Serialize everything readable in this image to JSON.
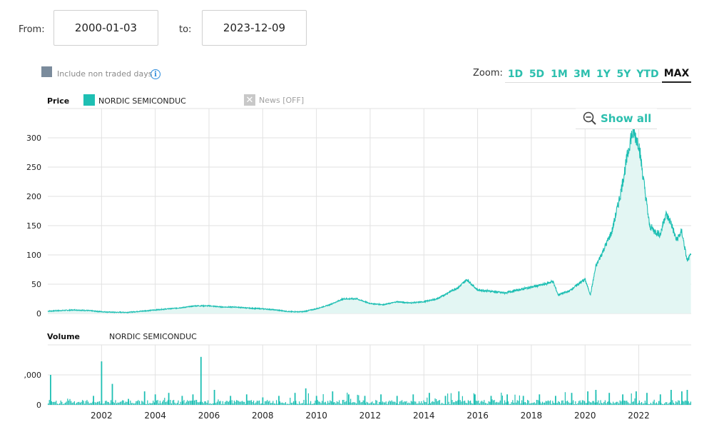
{
  "date_range": {
    "from_label": "From:",
    "from_value": "2000-01-03",
    "to_label": "to:",
    "to_value": "2023-12-09"
  },
  "options": {
    "include_non_traded_days": "Include non traded days",
    "info_icon": "info-icon"
  },
  "zoom": {
    "label": "Zoom:",
    "buttons": [
      "1D",
      "5D",
      "1M",
      "3M",
      "1Y",
      "5Y",
      "YTD",
      "MAX"
    ],
    "active": "MAX"
  },
  "legend": {
    "price_title": "Price",
    "series_name": "NORDIC SEMICONDUC",
    "news_label": "News [OFF]",
    "volume_title": "Volume",
    "volume_series_name": "NORDIC SEMICONDUC"
  },
  "show_all": "Show all",
  "colors": {
    "series": "#1ebfb3",
    "fill": "#e3f6f3",
    "accent": "#2cbfae",
    "grid": "#e2e2e2"
  },
  "chart_data": [
    {
      "type": "line",
      "name": "price",
      "series": [
        {
          "name": "NORDIC SEMICONDUC",
          "x": [
            2000.0,
            2000.5,
            2001.0,
            2001.5,
            2002.0,
            2002.5,
            2003.0,
            2003.5,
            2004.0,
            2004.5,
            2005.0,
            2005.5,
            2006.0,
            2006.5,
            2007.0,
            2007.5,
            2008.0,
            2008.5,
            2009.0,
            2009.5,
            2010.0,
            2010.5,
            2011.0,
            2011.5,
            2012.0,
            2012.5,
            2013.0,
            2013.5,
            2014.0,
            2014.5,
            2015.0,
            2015.3,
            2015.6,
            2016.0,
            2016.5,
            2017.0,
            2017.5,
            2018.0,
            2018.5,
            2018.8,
            2019.0,
            2019.4,
            2019.8,
            2020.0,
            2020.2,
            2020.4,
            2020.7,
            2021.0,
            2021.3,
            2021.5,
            2021.7,
            2021.8,
            2022.0,
            2022.2,
            2022.4,
            2022.6,
            2022.8,
            2023.0,
            2023.2,
            2023.4,
            2023.6,
            2023.8,
            2023.94
          ],
          "values": [
            4,
            5,
            6,
            5,
            3,
            2,
            2,
            4,
            6,
            8,
            10,
            13,
            13,
            11,
            11,
            9,
            8,
            6,
            3,
            3,
            8,
            15,
            25,
            25,
            17,
            15,
            20,
            18,
            20,
            25,
            38,
            45,
            58,
            40,
            38,
            35,
            40,
            45,
            50,
            55,
            32,
            38,
            52,
            58,
            32,
            80,
            110,
            140,
            200,
            250,
            300,
            310,
            290,
            220,
            150,
            140,
            135,
            170,
            155,
            125,
            140,
            90,
            100
          ]
        }
      ],
      "xlim": [
        2000.0,
        2023.95
      ],
      "ylim": [
        0,
        350
      ],
      "y_ticks": [
        0,
        50,
        100,
        150,
        200,
        250,
        300
      ],
      "x_ticks": [
        2002,
        2004,
        2006,
        2008,
        2010,
        2012,
        2014,
        2016,
        2018,
        2020,
        2022
      ],
      "grid": true
    },
    {
      "type": "bar",
      "name": "volume",
      "y_tick_labels": [
        "0",
        ",000"
      ],
      "series": [
        {
          "name": "NORDIC SEMICONDUC",
          "x": [
            2000.1,
            2001.7,
            2002.0,
            2002.4,
            2003.0,
            2003.6,
            2004.0,
            2004.5,
            2005.0,
            2005.4,
            2005.7,
            2006.2,
            2006.8,
            2007.4,
            2008.0,
            2008.6,
            2009.2,
            2009.6,
            2010.0,
            2010.6,
            2011.2,
            2011.8,
            2012.4,
            2013.0,
            2013.6,
            2014.2,
            2014.8,
            2015.3,
            2015.9,
            2016.5,
            2017.1,
            2017.7,
            2018.3,
            2018.9,
            2019.5,
            2020.1,
            2020.4,
            2020.9,
            2021.4,
            2021.9,
            2022.3,
            2022.8,
            2023.2,
            2023.6,
            2023.8
          ],
          "values": [
            1.0,
            0.3,
            1.45,
            0.7,
            0.2,
            0.45,
            0.35,
            0.4,
            0.3,
            0.35,
            1.6,
            0.5,
            0.3,
            0.35,
            0.25,
            0.3,
            0.4,
            0.55,
            0.3,
            0.45,
            0.35,
            0.3,
            0.35,
            0.3,
            0.35,
            0.4,
            0.3,
            0.45,
            0.35,
            0.3,
            0.35,
            0.3,
            0.35,
            0.3,
            0.4,
            0.45,
            0.5,
            0.4,
            0.35,
            0.45,
            0.4,
            0.35,
            0.5,
            0.45,
            0.5
          ]
        }
      ],
      "xlim": [
        2000.0,
        2023.95
      ],
      "ylim": [
        0,
        2
      ]
    }
  ]
}
